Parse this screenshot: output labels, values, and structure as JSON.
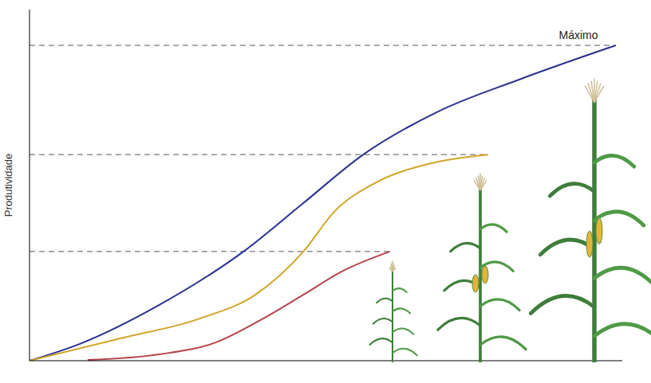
{
  "chart_data": {
    "type": "line",
    "y_label": "Produtividade",
    "xlim": [
      0,
      100
    ],
    "ylim": [
      0,
      100
    ],
    "tick_labels": false,
    "grid": false,
    "line_style": "solid",
    "series": [
      {
        "color": "#2b3190",
        "x": [
          0,
          8.5,
          21.9,
          36.1,
          46.2,
          56.3,
          69.0,
          82.5,
          98.9
        ],
        "values": [
          0,
          4.8,
          15.9,
          31.1,
          44.9,
          58.7,
          71.0,
          80.0,
          89.8
        ]
      },
      {
        "color": "#d1a62a",
        "x": [
          0,
          15.2,
          28.7,
          38.1,
          46.2,
          51.5,
          58.3,
          67.7,
          77.4
        ],
        "values": [
          0,
          6.3,
          12.0,
          18.8,
          31.1,
          42.6,
          50.6,
          56.2,
          58.7
        ]
      },
      {
        "color": "#b5444a",
        "x": [
          9.8,
          21.9,
          31.4,
          39.4,
          46.2,
          52.9,
          60.8
        ],
        "values": [
          0.2,
          1.8,
          5.2,
          12.0,
          18.8,
          25.6,
          31.1
        ]
      }
    ],
    "annotations": [
      {
        "text": "Máximo",
        "x": 92.6,
        "y": 92.7
      }
    ]
  }
}
